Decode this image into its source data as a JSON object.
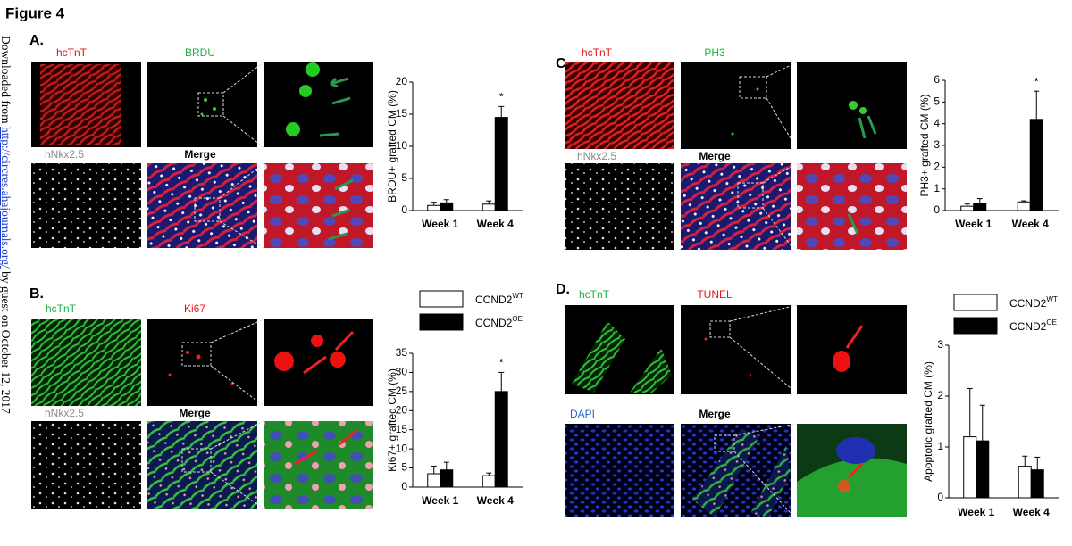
{
  "figure_title": "Figure 4",
  "side_text": {
    "prefix": "Downloaded from ",
    "link": "http://circres.ahajournals.org/",
    "suffix": " by guest on October 12, 2017"
  },
  "panels": [
    {
      "label": "A.",
      "images": [
        "hcTnT",
        "BRDU",
        "hNkx2.5",
        "Merge"
      ]
    },
    {
      "label": "B.",
      "images": [
        "hcTnT",
        "Ki67",
        "hNkx2.5",
        "Merge"
      ]
    },
    {
      "label": "C.",
      "images": [
        "hcTnT",
        "PH3",
        "hNkx2.5",
        "Merge"
      ]
    },
    {
      "label": "D.",
      "images": [
        "hcTnT",
        "TUNEL",
        "DAPI",
        "Merge"
      ]
    }
  ],
  "chart_data": [
    {
      "type": "bar",
      "y_label": "BRDU+ grafted CM (%)",
      "categories": [
        "Week 1",
        "Week 4"
      ],
      "ylim": [
        0,
        20
      ],
      "yticks": [
        0,
        5,
        10,
        15,
        20
      ],
      "annotation": "*",
      "series": [
        {
          "name": "CCND2",
          "name_sup": "WT",
          "color": "#ffffff",
          "values": [
            0.8,
            1.0
          ],
          "error": [
            0.5,
            0.5
          ]
        },
        {
          "name": "CCND2",
          "name_sup": "OE",
          "color": "#000000",
          "values": [
            1.2,
            14.5
          ],
          "error": [
            0.5,
            1.7
          ]
        }
      ]
    },
    {
      "type": "bar",
      "y_label": "Ki67+ grafted CM (%)",
      "categories": [
        "Week 1",
        "Week 4"
      ],
      "ylim": [
        0,
        35
      ],
      "yticks": [
        0,
        5,
        10,
        15,
        20,
        25,
        30,
        35
      ],
      "annotation": "*",
      "series": [
        {
          "name": "CCND2",
          "name_sup": "WT",
          "color": "#ffffff",
          "values": [
            3.5,
            3
          ],
          "error": [
            2,
            0.7
          ]
        },
        {
          "name": "CCND2",
          "name_sup": "OE",
          "color": "#000000",
          "values": [
            4.5,
            25
          ],
          "error": [
            2,
            5
          ]
        }
      ]
    },
    {
      "type": "bar",
      "y_label": "PH3+ grafted CM (%)",
      "categories": [
        "Week 1",
        "Week 4"
      ],
      "ylim": [
        0,
        6
      ],
      "yticks": [
        0,
        1,
        2,
        3,
        4,
        5,
        6
      ],
      "annotation": "*",
      "series": [
        {
          "name": "CCND2",
          "name_sup": "WT",
          "color": "#ffffff",
          "values": [
            0.2,
            0.4
          ],
          "error": [
            0.1,
            0.05
          ]
        },
        {
          "name": "CCND2",
          "name_sup": "OE",
          "color": "#000000",
          "values": [
            0.35,
            4.2
          ],
          "error": [
            0.2,
            1.3
          ]
        }
      ]
    },
    {
      "type": "bar",
      "y_label": "Apoptotic grafted CM (%)",
      "categories": [
        "Week 1",
        "Week 4"
      ],
      "ylim": [
        0,
        3
      ],
      "yticks": [
        0,
        1,
        2,
        3
      ],
      "series": [
        {
          "name": "CCND2",
          "name_sup": "WT",
          "color": "#ffffff",
          "values": [
            1.2,
            0.62
          ],
          "error": [
            0.95,
            0.2
          ]
        },
        {
          "name": "CCND2",
          "name_sup": "OE",
          "color": "#000000",
          "values": [
            1.12,
            0.55
          ],
          "error": [
            0.7,
            0.25
          ]
        }
      ]
    }
  ]
}
